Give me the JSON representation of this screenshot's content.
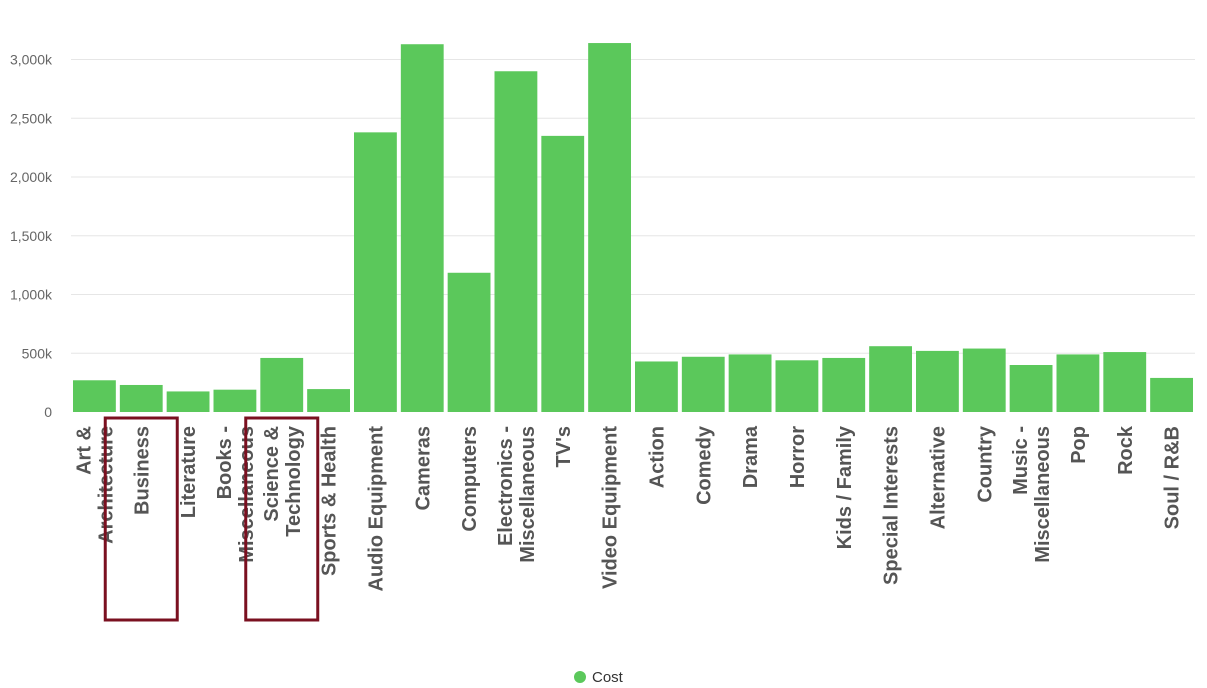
{
  "chart_data": {
    "type": "bar",
    "categories": [
      [
        "Art &",
        "Architecture"
      ],
      [
        "Business"
      ],
      [
        "Literature"
      ],
      [
        "Books -",
        "Miscellaneous"
      ],
      [
        "Science &",
        "Technology"
      ],
      [
        "Sports & Health"
      ],
      [
        "Audio Equipment"
      ],
      [
        "Cameras"
      ],
      [
        "Computers"
      ],
      [
        "Electronics -",
        "Miscellaneous"
      ],
      [
        "TV's"
      ],
      [
        "Video Equipment"
      ],
      [
        "Action"
      ],
      [
        "Comedy"
      ],
      [
        "Drama"
      ],
      [
        "Horror"
      ],
      [
        "Kids / Family"
      ],
      [
        "Special Interests"
      ],
      [
        "Alternative"
      ],
      [
        "Country"
      ],
      [
        "Music -",
        "Miscellaneous"
      ],
      [
        "Pop"
      ],
      [
        "Rock"
      ],
      [
        "Soul / R&B"
      ]
    ],
    "series": [
      {
        "name": "Cost",
        "color": "#5bc85b",
        "values": [
          270,
          230,
          175,
          190,
          460,
          195,
          2380,
          3130,
          1185,
          2900,
          2350,
          3140,
          430,
          470,
          490,
          440,
          460,
          560,
          520,
          540,
          400,
          490,
          510,
          290
        ]
      }
    ],
    "ylim": [
      0,
      3200
    ],
    "yticks": [
      {
        "value": 0,
        "label": "0"
      },
      {
        "value": 500,
        "label": "500k"
      },
      {
        "value": 1000,
        "label": "1,000k"
      },
      {
        "value": 1500,
        "label": "1,500k"
      },
      {
        "value": 2000,
        "label": "2,000k"
      },
      {
        "value": 2500,
        "label": "2,500k"
      },
      {
        "value": 3000,
        "label": "3,000k"
      }
    ],
    "grid": true,
    "legend": "bottom-center",
    "highlight_color": "#7a1020",
    "highlighted_categories": [
      1,
      4
    ]
  }
}
